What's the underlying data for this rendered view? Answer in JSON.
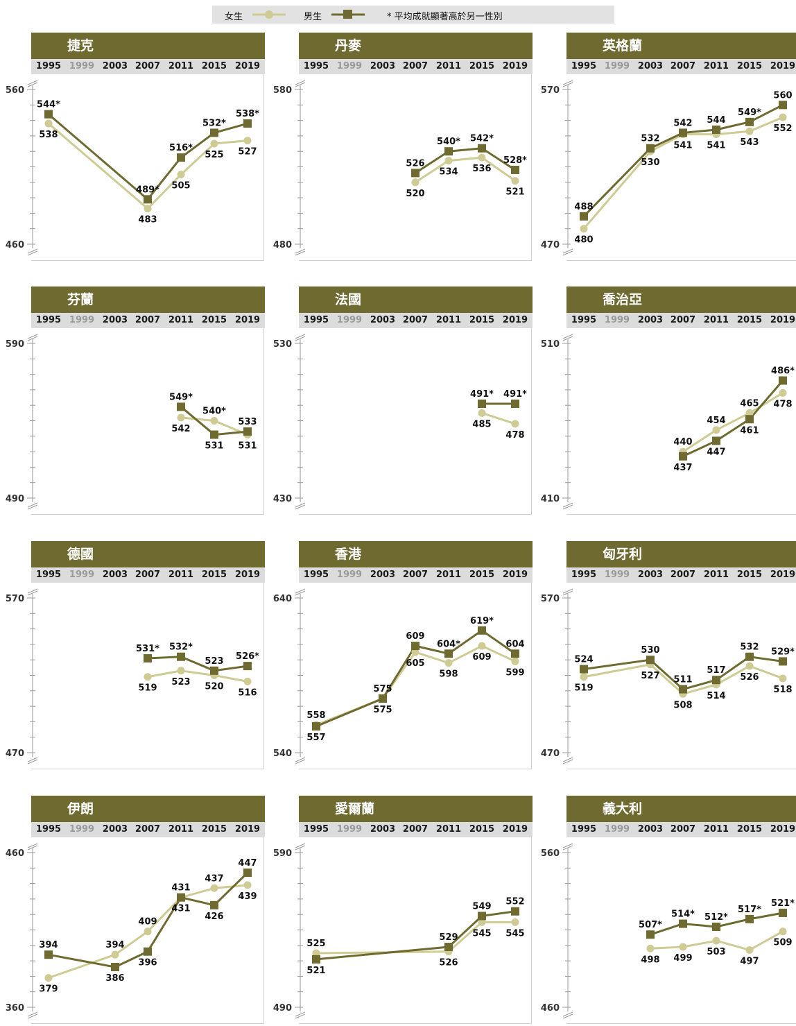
{
  "legend": {
    "female": "女生",
    "male": "男生",
    "note": "* 平均成就顯著高於另一性別"
  },
  "colors": {
    "female": "#cfcb94",
    "male": "#6e6a30",
    "header": "#6e6a30",
    "yearband": "#dcdcdc"
  },
  "years": [
    "1995",
    "1999",
    "2003",
    "2007",
    "2011",
    "2015",
    "2019"
  ],
  "chart_data": [
    {
      "type": "line",
      "title": "捷克",
      "ylim": [
        460,
        560
      ],
      "series": [
        {
          "name": "女生",
          "values": [
            538,
            null,
            null,
            483,
            505,
            525,
            527
          ]
        },
        {
          "name": "男生",
          "values": [
            544,
            null,
            null,
            489,
            516,
            532,
            538
          ]
        }
      ],
      "labels_female": [
        "538",
        null,
        null,
        "483",
        "505",
        "525",
        "527"
      ],
      "labels_male": [
        "544*",
        null,
        null,
        "489*",
        "516*",
        "532*",
        "538*"
      ]
    },
    {
      "type": "line",
      "title": "丹麥",
      "ylim": [
        480,
        580
      ],
      "series": [
        {
          "name": "女生",
          "values": [
            null,
            null,
            null,
            520,
            534,
            536,
            521
          ]
        },
        {
          "name": "男生",
          "values": [
            null,
            null,
            null,
            526,
            540,
            542,
            528
          ]
        }
      ],
      "labels_female": [
        null,
        null,
        null,
        "520",
        "534",
        "536",
        "521"
      ],
      "labels_male": [
        null,
        null,
        null,
        "526",
        "540*",
        "542*",
        "528*"
      ]
    },
    {
      "type": "line",
      "title": "英格蘭",
      "ylim": [
        470,
        570
      ],
      "series": [
        {
          "name": "女生",
          "values": [
            480,
            null,
            530,
            541,
            541,
            543,
            552
          ]
        },
        {
          "name": "男生",
          "values": [
            488,
            null,
            532,
            542,
            544,
            549,
            560
          ]
        }
      ],
      "labels_female": [
        "480",
        null,
        "530",
        "541",
        "541",
        "543",
        "552"
      ],
      "labels_male": [
        "488",
        null,
        "532",
        "542",
        "544",
        "549*",
        "560"
      ]
    },
    {
      "type": "line",
      "title": "芬蘭",
      "ylim": [
        490,
        590
      ],
      "series": [
        {
          "name": "女生",
          "values": [
            null,
            null,
            null,
            null,
            542,
            540,
            531
          ]
        },
        {
          "name": "男生",
          "values": [
            null,
            null,
            null,
            null,
            549,
            531,
            533
          ]
        }
      ],
      "labels_female": [
        null,
        null,
        null,
        null,
        "542",
        "540*",
        "531"
      ],
      "labels_male": [
        null,
        null,
        null,
        null,
        "549*",
        "531",
        "533"
      ]
    },
    {
      "type": "line",
      "title": "法國",
      "ylim": [
        430,
        530
      ],
      "series": [
        {
          "name": "女生",
          "values": [
            null,
            null,
            null,
            null,
            null,
            485,
            478
          ]
        },
        {
          "name": "男生",
          "values": [
            null,
            null,
            null,
            null,
            null,
            491,
            491
          ]
        }
      ],
      "labels_female": [
        null,
        null,
        null,
        null,
        null,
        "485",
        "478"
      ],
      "labels_male": [
        null,
        null,
        null,
        null,
        null,
        "491*",
        "491*"
      ]
    },
    {
      "type": "line",
      "title": "喬治亞",
      "ylim": [
        410,
        510
      ],
      "series": [
        {
          "name": "女生",
          "values": [
            null,
            null,
            null,
            440,
            454,
            465,
            478
          ]
        },
        {
          "name": "男生",
          "values": [
            null,
            null,
            null,
            437,
            447,
            461,
            486
          ]
        }
      ],
      "labels_female": [
        null,
        null,
        null,
        "440",
        "454",
        "465",
        "478"
      ],
      "labels_male": [
        null,
        null,
        null,
        "437",
        "447",
        "461",
        "486*"
      ]
    },
    {
      "type": "line",
      "title": "德國",
      "ylim": [
        470,
        570
      ],
      "series": [
        {
          "name": "女生",
          "values": [
            null,
            null,
            null,
            519,
            523,
            520,
            516
          ]
        },
        {
          "name": "男生",
          "values": [
            null,
            null,
            null,
            531,
            532,
            523,
            526
          ]
        }
      ],
      "labels_female": [
        null,
        null,
        null,
        "519",
        "523",
        "520",
        "516"
      ],
      "labels_male": [
        null,
        null,
        null,
        "531*",
        "532*",
        "523",
        "526*"
      ]
    },
    {
      "type": "line",
      "title": "香港",
      "ylim": [
        540,
        640
      ],
      "series": [
        {
          "name": "女生",
          "values": [
            558,
            null,
            575,
            605,
            598,
            609,
            599
          ]
        },
        {
          "name": "男生",
          "values": [
            557,
            null,
            575,
            609,
            604,
            619,
            604
          ]
        }
      ],
      "labels_female": [
        "558",
        null,
        "575",
        "605",
        "598",
        "609",
        "599"
      ],
      "labels_male": [
        "557",
        null,
        "575",
        "609",
        "604*",
        "619*",
        "604"
      ]
    },
    {
      "type": "line",
      "title": "匈牙利",
      "ylim": [
        470,
        570
      ],
      "series": [
        {
          "name": "女生",
          "values": [
            519,
            null,
            527,
            508,
            514,
            526,
            518
          ]
        },
        {
          "name": "男生",
          "values": [
            524,
            null,
            530,
            511,
            517,
            532,
            529
          ]
        }
      ],
      "labels_female": [
        "519",
        null,
        "527",
        "508",
        "514",
        "526",
        "518"
      ],
      "labels_male": [
        "524",
        null,
        "530",
        "511",
        "517",
        "532",
        "529*"
      ]
    },
    {
      "type": "line",
      "title": "伊朗",
      "ylim": [
        360,
        460
      ],
      "series": [
        {
          "name": "女生",
          "values": [
            379,
            null,
            394,
            409,
            431,
            437,
            439
          ]
        },
        {
          "name": "男生",
          "values": [
            394,
            null,
            386,
            396,
            431,
            426,
            447
          ]
        }
      ],
      "labels_female": [
        "379",
        null,
        "394",
        "409",
        "431",
        "437",
        "439"
      ],
      "labels_male": [
        "394",
        null,
        "386",
        "396",
        "431",
        "426",
        "447"
      ]
    },
    {
      "type": "line",
      "title": "愛爾蘭",
      "ylim": [
        490,
        590
      ],
      "series": [
        {
          "name": "女生",
          "values": [
            525,
            null,
            null,
            null,
            526,
            545,
            545
          ]
        },
        {
          "name": "男生",
          "values": [
            521,
            null,
            null,
            null,
            529,
            549,
            552
          ]
        }
      ],
      "labels_female": [
        "525",
        null,
        null,
        null,
        "526",
        "545",
        "545"
      ],
      "labels_male": [
        "521",
        null,
        null,
        null,
        "529",
        "549",
        "552"
      ]
    },
    {
      "type": "line",
      "title": "義大利",
      "ylim": [
        460,
        560
      ],
      "series": [
        {
          "name": "女生",
          "values": [
            null,
            null,
            498,
            499,
            503,
            497,
            509
          ]
        },
        {
          "name": "男生",
          "values": [
            null,
            null,
            507,
            514,
            512,
            517,
            521
          ]
        }
      ],
      "labels_female": [
        null,
        null,
        "498",
        "499",
        "503",
        "497",
        "509"
      ],
      "labels_male": [
        null,
        null,
        "507*",
        "514*",
        "512*",
        "517*",
        "521*"
      ]
    }
  ]
}
